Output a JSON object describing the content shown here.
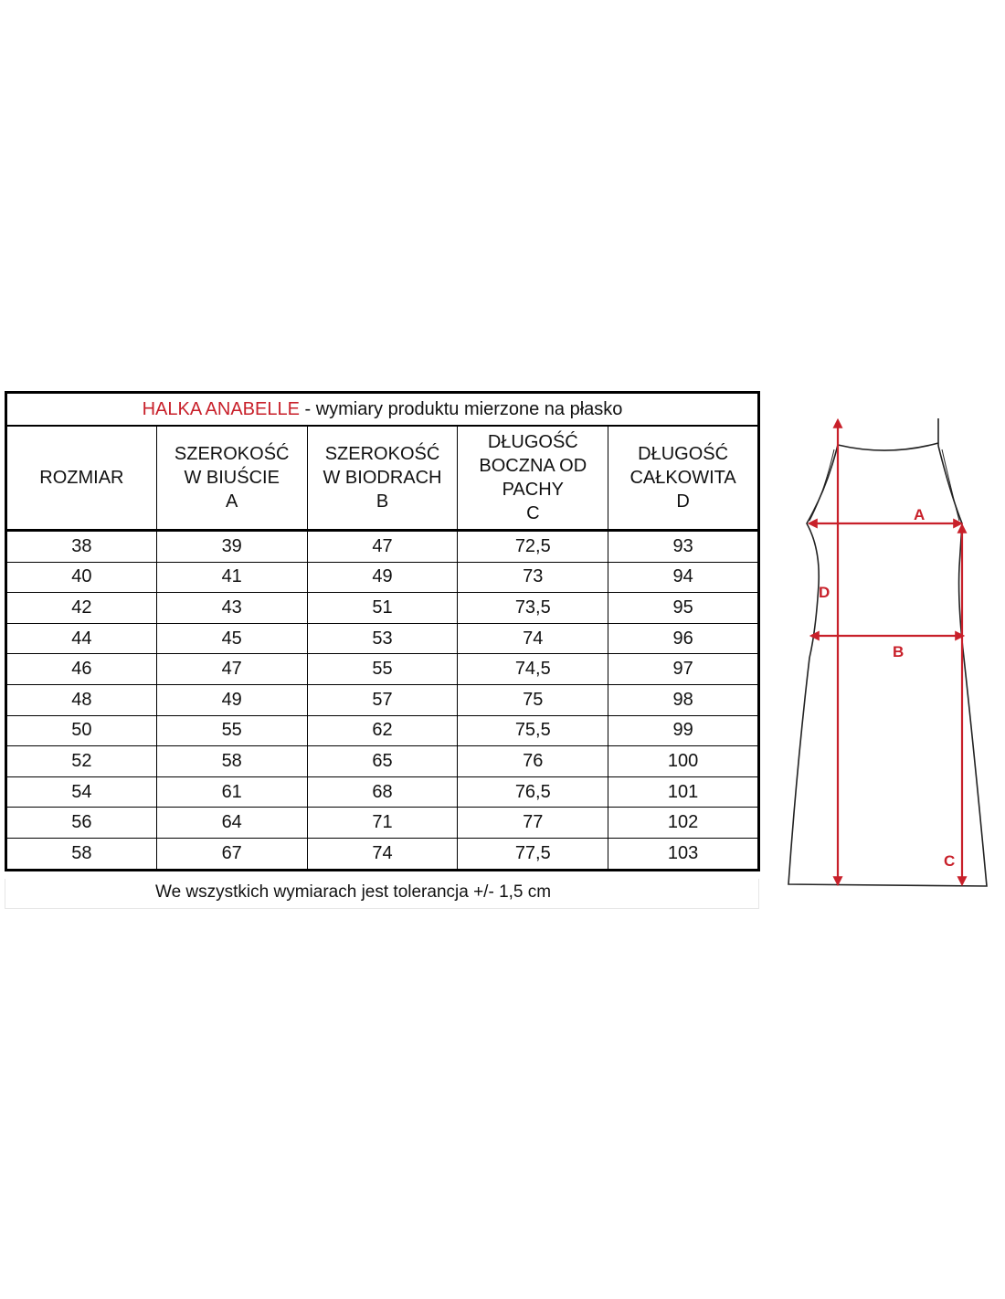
{
  "title": {
    "brand": "HALKA ANABELLE",
    "subtitle": " - wymiary produktu mierzone na płasko",
    "brand_color": "#c8202a"
  },
  "headers": [
    [
      "ROZMIAR"
    ],
    [
      "SZEROKOŚĆ",
      "W BIUŚCIE",
      "A"
    ],
    [
      "SZEROKOŚĆ",
      "W BIODRACH",
      "B"
    ],
    [
      "DŁUGOŚĆ",
      "BOCZNA OD",
      "PACHY",
      "C"
    ],
    [
      "DŁUGOŚĆ",
      "CAŁKOWITA",
      "D"
    ]
  ],
  "rows": [
    [
      "38",
      "39",
      "47",
      "72,5",
      "93"
    ],
    [
      "40",
      "41",
      "49",
      "73",
      "94"
    ],
    [
      "42",
      "43",
      "51",
      "73,5",
      "95"
    ],
    [
      "44",
      "45",
      "53",
      "74",
      "96"
    ],
    [
      "46",
      "47",
      "55",
      "74,5",
      "97"
    ],
    [
      "48",
      "49",
      "57",
      "75",
      "98"
    ],
    [
      "50",
      "55",
      "62",
      "75,5",
      "99"
    ],
    [
      "52",
      "58",
      "65",
      "76",
      "100"
    ],
    [
      "54",
      "61",
      "68",
      "76,5",
      "101"
    ],
    [
      "56",
      "64",
      "71",
      "77",
      "102"
    ],
    [
      "58",
      "67",
      "74",
      "77,5",
      "103"
    ]
  ],
  "footer": "We wszystkich wymiarach jest tolerancja +/- 1,5 cm",
  "diagram": {
    "labels": {
      "a": "A",
      "b": "B",
      "c": "C",
      "d": "D"
    },
    "arrow_color": "#c8202a",
    "outline_color": "#222222"
  }
}
